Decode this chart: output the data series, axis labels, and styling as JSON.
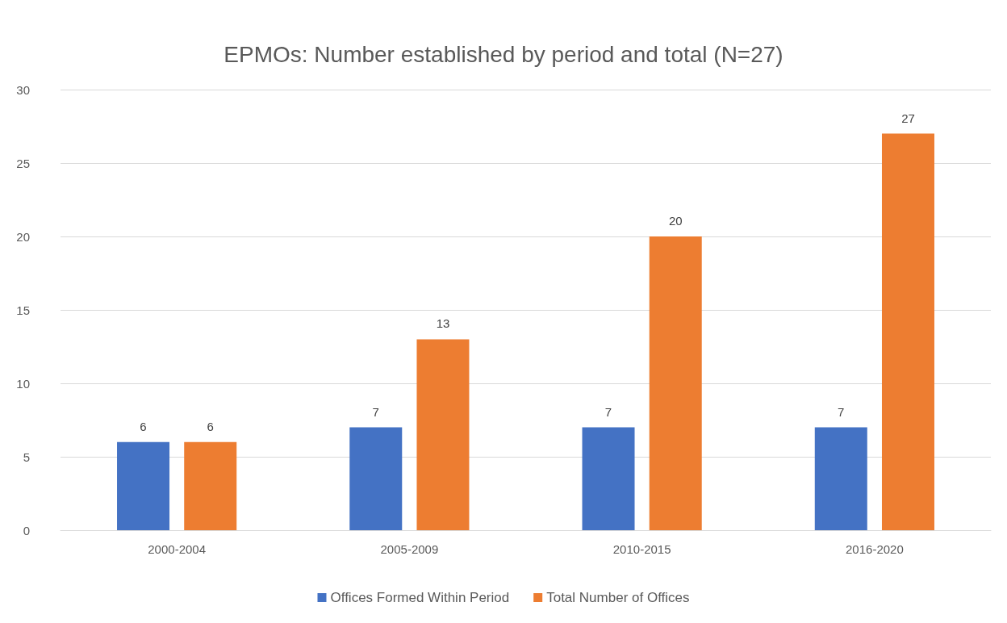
{
  "chart_data": {
    "type": "bar",
    "title": "EPMOs: Number established by period and total (N=27)",
    "categories": [
      "2000-2004",
      "2005-2009",
      "2010-2015",
      "2016-2020"
    ],
    "series": [
      {
        "name": "Offices Formed Within Period",
        "color": "#4472c4",
        "values": [
          6,
          7,
          7,
          7
        ]
      },
      {
        "name": "Total Number of Offices",
        "color": "#ed7d31",
        "values": [
          6,
          13,
          20,
          27
        ]
      }
    ],
    "ylim": [
      0,
      30
    ],
    "yticks": [
      0,
      5,
      10,
      15,
      20,
      25,
      30
    ],
    "grid": "y",
    "legend": "bottom",
    "data_labels": true
  }
}
